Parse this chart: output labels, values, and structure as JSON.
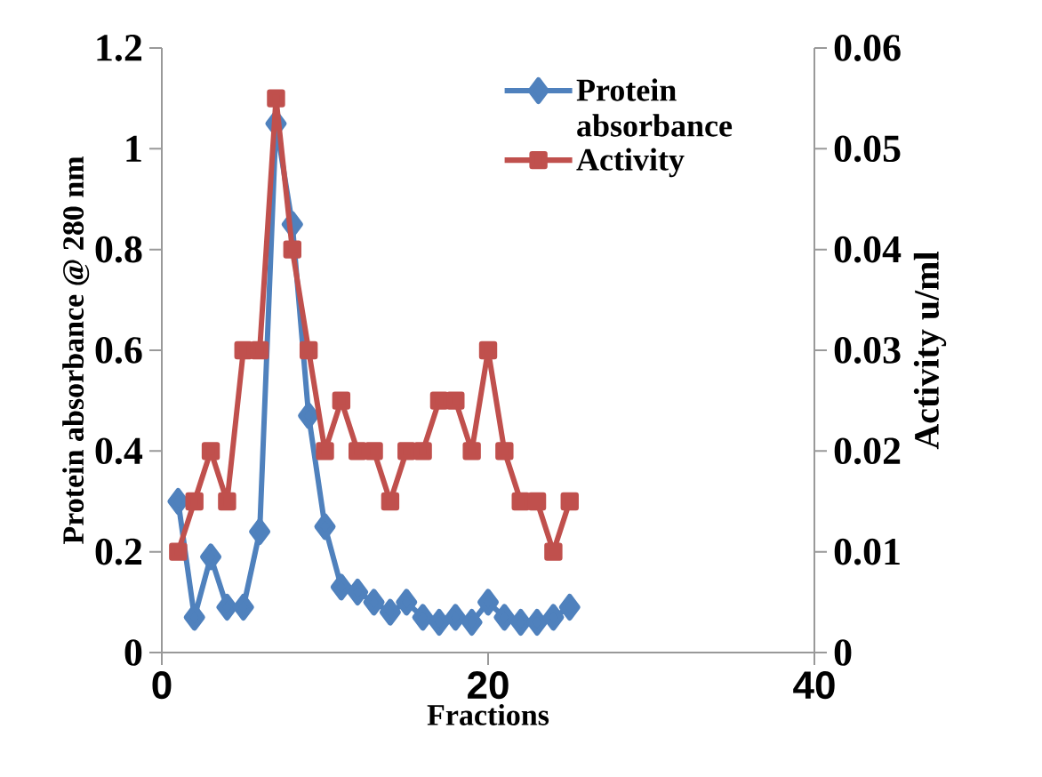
{
  "chart_data": {
    "type": "line",
    "xlabel": "Fractions",
    "ylabel": "Protein absorbance @ 280 nm",
    "y2label": "Activity u/ml",
    "legend": "top right",
    "xlim": [
      0,
      40
    ],
    "xticks": [
      0,
      20,
      40
    ],
    "ylim": [
      0,
      1.2
    ],
    "yticks": [
      0,
      0.2,
      0.4,
      0.6,
      0.8,
      1,
      1.2
    ],
    "y2lim": [
      0,
      0.06
    ],
    "y2ticks": [
      0,
      0.01,
      0.02,
      0.03,
      0.04,
      0.05,
      0.06
    ],
    "x": [
      1,
      2,
      3,
      4,
      5,
      6,
      7,
      8,
      9,
      10,
      11,
      12,
      13,
      14,
      15,
      16,
      17,
      18,
      19,
      20,
      21,
      22,
      23,
      24,
      25
    ],
    "series": [
      {
        "name": "Protein absorbance",
        "color": "#4f81bd",
        "marker": "diamond",
        "values": [
          0.3,
          0.07,
          0.19,
          0.09,
          0.09,
          0.24,
          1.05,
          0.85,
          0.47,
          0.25,
          0.13,
          0.12,
          0.1,
          0.08,
          0.1,
          0.07,
          0.06,
          0.07,
          0.06,
          0.1,
          0.07,
          0.06,
          0.06,
          0.07,
          0.09
        ]
      },
      {
        "name": "Activity",
        "color": "#c0504d",
        "marker": "square",
        "axis": "y2",
        "values": [
          0.01,
          0.015,
          0.02,
          0.015,
          0.03,
          0.03,
          0.055,
          0.04,
          0.03,
          0.02,
          0.025,
          0.02,
          0.02,
          0.015,
          0.02,
          0.02,
          0.025,
          0.025,
          0.02,
          0.03,
          0.02,
          0.015,
          0.015,
          0.01,
          0.015
        ]
      }
    ]
  }
}
